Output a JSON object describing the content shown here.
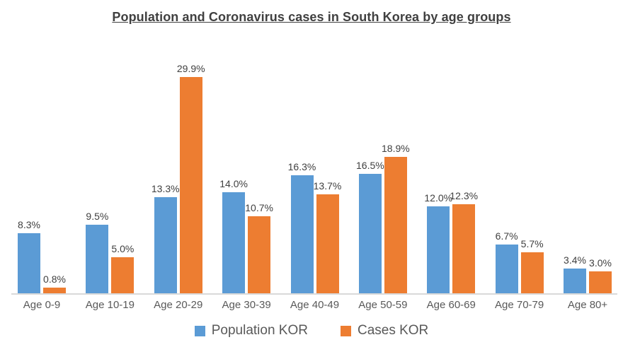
{
  "title": "Population and Coronavirus cases in South Korea by age groups",
  "colors": {
    "population": "#5B9BD5",
    "cases": "#ED7D31",
    "title_text": "#404040",
    "data_label_text": "#404040",
    "axis_text": "#595959",
    "baseline": "#D9D9D9",
    "background": "#FFFFFF"
  },
  "legend": {
    "position": "bottom",
    "items": [
      {
        "label": "Population KOR",
        "color": "#5B9BD5"
      },
      {
        "label": "Cases KOR",
        "color": "#ED7D31"
      }
    ]
  },
  "chart_data": {
    "type": "bar",
    "title": "Population and Coronavirus cases in South Korea by age groups",
    "categories": [
      "Age 0-9",
      "Age 10-19",
      "Age 20-29",
      "Age 30-39",
      "Age 40-49",
      "Age 50-59",
      "Age 60-69",
      "Age 70-79",
      "Age 80+"
    ],
    "series": [
      {
        "name": "Population KOR",
        "color": "#5B9BD5",
        "values": [
          8.3,
          9.5,
          13.3,
          14.0,
          16.3,
          16.5,
          12.0,
          6.7,
          3.4
        ],
        "labels": [
          "8.3%",
          "9.5%",
          "13.3%",
          "14.0%",
          "16.3%",
          "16.5%",
          "12.0%",
          "6.7%",
          "3.4%"
        ]
      },
      {
        "name": "Cases KOR",
        "color": "#ED7D31",
        "values": [
          0.8,
          5.0,
          29.9,
          10.7,
          13.7,
          18.9,
          12.3,
          5.7,
          3.0
        ],
        "labels": [
          "0.8%",
          "5.0%",
          "29.9%",
          "10.7%",
          "13.7%",
          "18.9%",
          "12.3%",
          "5.7%",
          "3.0%"
        ]
      }
    ],
    "xlabel": "",
    "ylabel": "",
    "ylim": [
      0,
      32
    ],
    "grid": false,
    "y_axis_visible": false,
    "data_labels": true,
    "legend_position": "bottom"
  }
}
